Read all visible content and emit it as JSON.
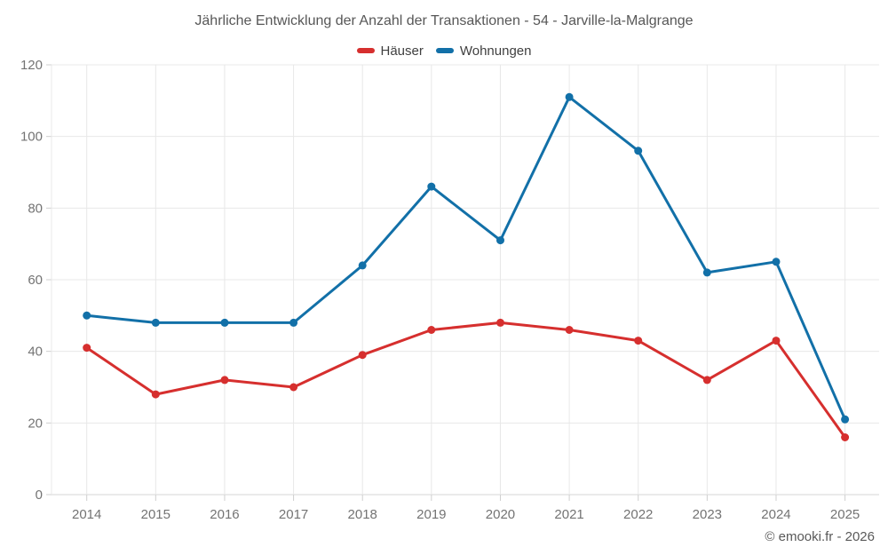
{
  "title": "Jährliche Entwicklung der Anzahl der Transaktionen - 54 - Jarville-la-Malgrange",
  "footer": "© emooki.fr - 2026",
  "colors": {
    "background": "#ffffff",
    "grid": "#e8e8e8",
    "axis_line": "#d6d6d6",
    "tick": "#cfcfcf",
    "axis_label": "#737373",
    "title_text": "#575757",
    "legend_text": "#3f3f3f",
    "footer_text": "#595959",
    "series_hauser": "#d62f2e",
    "series_wohnungen": "#1270a8"
  },
  "chart_data": {
    "type": "line",
    "title": "Jährliche Entwicklung der Anzahl der Transaktionen - 54 - Jarville-la-Malgrange",
    "xlabel": "",
    "ylabel": "",
    "categories": [
      "2014",
      "2015",
      "2016",
      "2017",
      "2018",
      "2019",
      "2020",
      "2021",
      "2022",
      "2023",
      "2024",
      "2025"
    ],
    "series": [
      {
        "name": "Häuser",
        "color": "#d62f2e",
        "values": [
          41,
          28,
          32,
          30,
          39,
          46,
          48,
          46,
          43,
          32,
          43,
          16
        ]
      },
      {
        "name": "Wohnungen",
        "color": "#1270a8",
        "values": [
          50,
          48,
          48,
          48,
          64,
          86,
          71,
          111,
          96,
          62,
          65,
          21
        ]
      }
    ],
    "ylim": [
      0,
      120
    ],
    "yticks": [
      0,
      20,
      40,
      60,
      80,
      100,
      120
    ],
    "grid": true,
    "legend_position": "top-center",
    "marker": "circle"
  }
}
